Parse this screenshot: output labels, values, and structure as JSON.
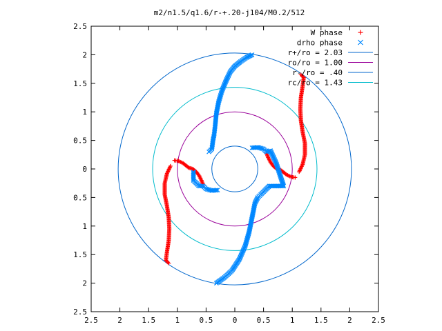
{
  "chart_data": {
    "type": "scatter",
    "title": "m2/n1.5/q1.6/r-+.20-j104/M0.2/512",
    "xlim": [
      -2.5,
      2.5
    ],
    "ylim": [
      -2.5,
      2.5
    ],
    "x_ticks": [
      "2.5",
      "2",
      "1.5",
      "1",
      "0.5",
      "0",
      "0.5",
      "1",
      "1.5",
      "2",
      "2.5"
    ],
    "y_ticks": [
      "2.5",
      "2",
      "1.5",
      "1",
      "0.5",
      "0",
      "0.5",
      "1",
      "1.5",
      "2",
      "2.5"
    ],
    "grid": false,
    "legend_placement": "top-right",
    "circles": [
      {
        "name": "r+/ro = 2.03",
        "radius": 2.03,
        "color": "#0066cc"
      },
      {
        "name": "ro/ro = 1.00",
        "radius": 1.0,
        "color": "#990099"
      },
      {
        "name": "r-/ro = .40",
        "radius": 0.4,
        "color": "#0066cc"
      },
      {
        "name": "rc/ro = 1.43",
        "radius": 1.43,
        "color": "#00bbcc"
      }
    ],
    "series": [
      {
        "name": "W phase",
        "marker": "+",
        "color": "#ff0000",
        "points": [
          [
            1.05,
            -0.15
          ],
          [
            0.98,
            -0.14
          ],
          [
            0.9,
            -0.1
          ],
          [
            0.8,
            -0.02
          ],
          [
            0.73,
            0.0
          ],
          [
            0.67,
            0.05
          ],
          [
            0.62,
            0.12
          ],
          [
            0.58,
            0.2
          ],
          [
            0.55,
            0.28
          ],
          [
            1.12,
            -0.05
          ],
          [
            1.18,
            0.08
          ],
          [
            1.22,
            0.25
          ],
          [
            1.22,
            0.45
          ],
          [
            1.18,
            0.65
          ],
          [
            1.15,
            0.85
          ],
          [
            1.14,
            1.05
          ],
          [
            1.15,
            1.25
          ],
          [
            1.18,
            1.45
          ],
          [
            1.2,
            1.6
          ],
          [
            1.15,
            1.65
          ],
          [
            -1.05,
            0.15
          ],
          [
            -0.98,
            0.14
          ],
          [
            -0.9,
            0.1
          ],
          [
            -0.8,
            0.02
          ],
          [
            -0.73,
            0.0
          ],
          [
            -0.67,
            -0.05
          ],
          [
            -0.62,
            -0.12
          ],
          [
            -0.58,
            -0.2
          ],
          [
            -0.55,
            -0.28
          ],
          [
            -1.12,
            0.05
          ],
          [
            -1.18,
            -0.08
          ],
          [
            -1.22,
            -0.25
          ],
          [
            -1.22,
            -0.45
          ],
          [
            -1.18,
            -0.65
          ],
          [
            -1.15,
            -0.85
          ],
          [
            -1.14,
            -1.05
          ],
          [
            -1.15,
            -1.25
          ],
          [
            -1.18,
            -1.45
          ],
          [
            -1.2,
            -1.6
          ],
          [
            -1.15,
            -1.65
          ]
        ]
      },
      {
        "name": "drho phase",
        "marker": "x",
        "color": "#0088ff",
        "points": [
          [
            0.3,
            2.0
          ],
          [
            0.2,
            1.95
          ],
          [
            0.1,
            1.88
          ],
          [
            0.0,
            1.8
          ],
          [
            -0.08,
            1.7
          ],
          [
            -0.15,
            1.55
          ],
          [
            -0.22,
            1.38
          ],
          [
            -0.28,
            1.18
          ],
          [
            -0.32,
            0.98
          ],
          [
            -0.34,
            0.78
          ],
          [
            -0.36,
            0.6
          ],
          [
            -0.38,
            0.5
          ],
          [
            -0.4,
            0.35
          ],
          [
            -0.45,
            0.3
          ],
          [
            0.3,
            0.37
          ],
          [
            0.4,
            0.38
          ],
          [
            0.5,
            0.35
          ],
          [
            0.55,
            0.3
          ],
          [
            0.62,
            0.32
          ],
          [
            0.72,
            0.1
          ],
          [
            0.85,
            -0.3
          ],
          [
            0.6,
            -0.3
          ],
          [
            0.45,
            -0.45
          ],
          [
            0.4,
            -0.5
          ],
          [
            0.35,
            -0.6
          ],
          [
            0.3,
            -0.85
          ],
          [
            0.25,
            -1.1
          ],
          [
            0.18,
            -1.35
          ],
          [
            0.08,
            -1.58
          ],
          [
            -0.05,
            -1.78
          ],
          [
            -0.18,
            -1.9
          ],
          [
            -0.32,
            -2.0
          ],
          [
            -0.3,
            -0.37
          ],
          [
            -0.4,
            -0.38
          ],
          [
            -0.5,
            -0.35
          ],
          [
            -0.55,
            -0.3
          ],
          [
            -0.62,
            -0.3
          ],
          [
            -0.72,
            -0.2
          ],
          [
            -0.72,
            -0.05
          ]
        ]
      }
    ]
  }
}
